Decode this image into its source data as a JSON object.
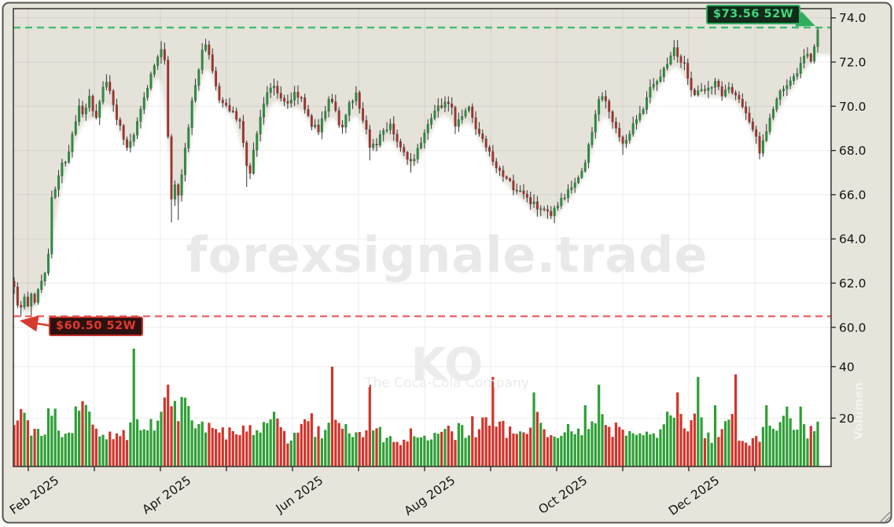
{
  "chart_data": {
    "type": "candlestick+volume",
    "symbol": "KO",
    "company": "The Coca-Cola Company",
    "watermarks": {
      "site": "forexsignale.trade",
      "symbol": "KO",
      "company": "The Coca-Cola Company",
      "side": "Volumen"
    },
    "price_axis": {
      "side": "right",
      "tick_labels": [
        "74.0",
        "72.0",
        "70.0",
        "68.0",
        "66.0",
        "64.0",
        "62.0",
        "60.0"
      ],
      "tick_values": [
        74,
        72,
        70,
        68,
        66,
        64,
        62,
        60
      ],
      "ylim": [
        53.7,
        74.4
      ]
    },
    "volume_axis": {
      "tick_labels": [
        "40",
        "20"
      ],
      "tick_values": [
        40,
        20
      ],
      "ylim": [
        0,
        182
      ]
    },
    "date_axis": {
      "month_labels": [
        "Feb 2025",
        "",
        "Apr 2025",
        "",
        "Jun 2025",
        "",
        "Aug 2025",
        "",
        "Oct 2025",
        "",
        "Dec 2025",
        ""
      ],
      "range": "Jan 2025 - Jan 2026"
    },
    "annotations": {
      "high_52w": {
        "label": "$73.56 52W",
        "value": 73.56,
        "line_color": "#3dbd71",
        "text_color": "#41d97c",
        "box_bg": "#132a1b",
        "border_color": "#2fae5e"
      },
      "low_52w": {
        "label": "$60.50 52W",
        "value": 60.5,
        "line_color": "#e85755",
        "text_color": "#e23a2e",
        "box_bg": "#2d1111",
        "border_color": "#c3342c"
      }
    },
    "colors": {
      "up": "#27923E",
      "down": "#A8322C",
      "vol_up": "#2E9F36",
      "vol_down": "#D2342A",
      "wick": "#333333",
      "plot_bg": "#e5e2da",
      "below_fill": "#ffffff",
      "frame_bg": "#e7e4dc",
      "frame_border": "#57534e",
      "grid": "rgba(0,0,0,0.07)",
      "spine": "#403d38",
      "tick_text": "#141414"
    },
    "days": 236,
    "price_path": [
      [
        0,
        61.8
      ],
      [
        1,
        61.1
      ],
      [
        2,
        60.8
      ],
      [
        3,
        61.3
      ],
      [
        4,
        60.9
      ],
      [
        5,
        61.4
      ],
      [
        6,
        61.2
      ],
      [
        7,
        61.7
      ],
      [
        8,
        62.1
      ],
      [
        9,
        62.6
      ],
      [
        10,
        63.4
      ],
      [
        11,
        65.8
      ],
      [
        12,
        66.3
      ],
      [
        14,
        67.3
      ],
      [
        16,
        67.9
      ],
      [
        18,
        69.3
      ],
      [
        19,
        70.0
      ],
      [
        20,
        69.7
      ],
      [
        22,
        70.3
      ],
      [
        24,
        69.4
      ],
      [
        26,
        70.8
      ],
      [
        27,
        71.2
      ],
      [
        29,
        70.1
      ],
      [
        31,
        69.0
      ],
      [
        33,
        68.2
      ],
      [
        35,
        68.8
      ],
      [
        37,
        69.9
      ],
      [
        39,
        70.9
      ],
      [
        41,
        71.9
      ],
      [
        43,
        72.5
      ],
      [
        44,
        72.2
      ],
      [
        45,
        68.5
      ],
      [
        46,
        65.7
      ],
      [
        47,
        66.3
      ],
      [
        48,
        65.9
      ],
      [
        49,
        66.9
      ],
      [
        50,
        68.0
      ],
      [
        51,
        69.0
      ],
      [
        52,
        70.2
      ],
      [
        53,
        71.0
      ],
      [
        54,
        71.8
      ],
      [
        55,
        72.4
      ],
      [
        56,
        72.9
      ],
      [
        57,
        72.4
      ],
      [
        58,
        71.5
      ],
      [
        60,
        70.3
      ],
      [
        62,
        70.0
      ],
      [
        64,
        69.8
      ],
      [
        66,
        69.3
      ],
      [
        67,
        68.3
      ],
      [
        68,
        67.3
      ],
      [
        69,
        67.1
      ],
      [
        70,
        68.0
      ],
      [
        72,
        69.6
      ],
      [
        74,
        70.6
      ],
      [
        76,
        70.9
      ],
      [
        78,
        70.4
      ],
      [
        80,
        70.1
      ],
      [
        82,
        70.6
      ],
      [
        84,
        70.4
      ],
      [
        85,
        69.8
      ],
      [
        87,
        69.2
      ],
      [
        89,
        68.9
      ],
      [
        90,
        69.4
      ],
      [
        92,
        70.4
      ],
      [
        93,
        70.2
      ],
      [
        95,
        69.3
      ],
      [
        96,
        68.9
      ],
      [
        98,
        70.2
      ],
      [
        100,
        70.5
      ],
      [
        101,
        70.0
      ],
      [
        103,
        68.9
      ],
      [
        104,
        68.0
      ],
      [
        106,
        68.3
      ],
      [
        108,
        68.9
      ],
      [
        110,
        69.2
      ],
      [
        112,
        68.5
      ],
      [
        114,
        67.8
      ],
      [
        116,
        67.4
      ],
      [
        118,
        68.1
      ],
      [
        120,
        68.9
      ],
      [
        122,
        69.6
      ],
      [
        124,
        70.0
      ],
      [
        126,
        70.2
      ],
      [
        128,
        69.8
      ],
      [
        129,
        69.2
      ],
      [
        131,
        69.6
      ],
      [
        133,
        69.9
      ],
      [
        135,
        69.0
      ],
      [
        137,
        68.4
      ],
      [
        139,
        67.8
      ],
      [
        141,
        67.1
      ],
      [
        143,
        66.8
      ],
      [
        145,
        66.5
      ],
      [
        147,
        66.2
      ],
      [
        149,
        66.0
      ],
      [
        151,
        65.7
      ],
      [
        153,
        65.4
      ],
      [
        155,
        65.2
      ],
      [
        157,
        65.0
      ],
      [
        159,
        65.5
      ],
      [
        161,
        65.9
      ],
      [
        163,
        66.3
      ],
      [
        165,
        66.8
      ],
      [
        167,
        67.4
      ],
      [
        168,
        68.2
      ],
      [
        170,
        69.6
      ],
      [
        171,
        70.4
      ],
      [
        173,
        70.2
      ],
      [
        175,
        69.4
      ],
      [
        177,
        68.6
      ],
      [
        178,
        68.2
      ],
      [
        180,
        68.8
      ],
      [
        182,
        69.4
      ],
      [
        184,
        70.0
      ],
      [
        186,
        70.9
      ],
      [
        188,
        71.2
      ],
      [
        190,
        71.7
      ],
      [
        192,
        72.3
      ],
      [
        193,
        72.8
      ],
      [
        194,
        72.4
      ],
      [
        196,
        71.8
      ],
      [
        197,
        71.2
      ],
      [
        199,
        70.6
      ],
      [
        201,
        70.7
      ],
      [
        203,
        70.9
      ],
      [
        205,
        71.0
      ],
      [
        207,
        70.6
      ],
      [
        209,
        70.8
      ],
      [
        211,
        70.6
      ],
      [
        213,
        70.0
      ],
      [
        215,
        69.3
      ],
      [
        217,
        68.5
      ],
      [
        218,
        68.0
      ],
      [
        220,
        68.9
      ],
      [
        222,
        69.9
      ],
      [
        224,
        70.6
      ],
      [
        226,
        71.0
      ],
      [
        228,
        71.2
      ],
      [
        230,
        71.9
      ],
      [
        232,
        72.4
      ],
      [
        233,
        72.0
      ],
      [
        234,
        72.8
      ],
      [
        235,
        73.3
      ]
    ],
    "pins_low": [
      [
        2,
        60.5
      ],
      [
        5,
        60.55
      ],
      [
        46,
        64.75
      ],
      [
        48,
        64.85
      ],
      [
        68,
        66.35
      ],
      [
        104,
        67.55
      ],
      [
        116,
        67.0
      ],
      [
        157,
        64.9
      ],
      [
        178,
        67.8
      ],
      [
        218,
        67.6
      ]
    ],
    "pins_high": [
      [
        27,
        71.45
      ],
      [
        43,
        72.95
      ],
      [
        56,
        73.05
      ],
      [
        193,
        73.0
      ],
      [
        235,
        73.56
      ]
    ],
    "volume_path": [
      [
        0,
        16
      ],
      [
        3,
        22
      ],
      [
        6,
        14
      ],
      [
        9,
        13
      ],
      [
        10,
        26
      ],
      [
        12,
        22
      ],
      [
        14,
        15
      ],
      [
        16,
        13
      ],
      [
        18,
        20
      ],
      [
        20,
        24
      ],
      [
        22,
        22
      ],
      [
        24,
        16
      ],
      [
        26,
        14
      ],
      [
        28,
        13
      ],
      [
        30,
        12
      ],
      [
        32,
        14
      ],
      [
        34,
        15
      ],
      [
        36,
        18
      ],
      [
        38,
        15
      ],
      [
        40,
        18
      ],
      [
        42,
        20
      ],
      [
        44,
        26
      ],
      [
        46,
        24
      ],
      [
        48,
        22
      ],
      [
        50,
        24
      ],
      [
        52,
        18
      ],
      [
        54,
        16
      ],
      [
        56,
        18
      ],
      [
        58,
        15
      ],
      [
        60,
        17
      ],
      [
        62,
        15
      ],
      [
        64,
        13
      ],
      [
        66,
        12
      ],
      [
        68,
        18
      ],
      [
        70,
        14
      ],
      [
        72,
        16
      ],
      [
        74,
        18
      ],
      [
        76,
        20
      ],
      [
        78,
        14
      ],
      [
        80,
        12
      ],
      [
        82,
        13
      ],
      [
        84,
        15
      ],
      [
        86,
        22
      ],
      [
        88,
        16
      ],
      [
        90,
        13
      ],
      [
        92,
        18
      ],
      [
        94,
        24
      ],
      [
        96,
        17
      ],
      [
        98,
        14
      ],
      [
        100,
        12
      ],
      [
        102,
        15
      ],
      [
        104,
        20
      ],
      [
        106,
        18
      ],
      [
        108,
        13
      ],
      [
        110,
        12
      ],
      [
        112,
        11
      ],
      [
        114,
        13
      ],
      [
        116,
        14
      ],
      [
        118,
        12
      ],
      [
        120,
        11
      ],
      [
        122,
        12
      ],
      [
        124,
        14
      ],
      [
        126,
        15
      ],
      [
        128,
        13
      ],
      [
        130,
        16
      ],
      [
        132,
        13
      ],
      [
        134,
        17
      ],
      [
        136,
        15
      ],
      [
        138,
        20
      ],
      [
        140,
        22
      ],
      [
        142,
        17
      ],
      [
        144,
        15
      ],
      [
        146,
        18
      ],
      [
        148,
        14
      ],
      [
        150,
        16
      ],
      [
        152,
        20
      ],
      [
        154,
        18
      ],
      [
        156,
        16
      ],
      [
        158,
        14
      ],
      [
        160,
        13
      ],
      [
        162,
        15
      ],
      [
        164,
        13
      ],
      [
        166,
        16
      ],
      [
        168,
        18
      ],
      [
        170,
        22
      ],
      [
        172,
        20
      ],
      [
        174,
        16
      ],
      [
        176,
        15
      ],
      [
        178,
        13
      ],
      [
        180,
        14
      ],
      [
        182,
        13
      ],
      [
        184,
        16
      ],
      [
        186,
        14
      ],
      [
        188,
        13
      ],
      [
        190,
        15
      ],
      [
        192,
        22
      ],
      [
        194,
        20
      ],
      [
        196,
        18
      ],
      [
        198,
        16
      ],
      [
        200,
        20
      ],
      [
        202,
        15
      ],
      [
        204,
        13
      ],
      [
        206,
        14
      ],
      [
        208,
        16
      ],
      [
        210,
        18
      ],
      [
        212,
        12
      ],
      [
        214,
        9
      ],
      [
        216,
        10
      ],
      [
        218,
        12
      ],
      [
        220,
        18
      ],
      [
        222,
        20
      ],
      [
        224,
        18
      ],
      [
        226,
        22
      ],
      [
        228,
        16
      ],
      [
        230,
        20
      ],
      [
        232,
        15
      ],
      [
        235,
        16
      ]
    ],
    "volume_spikes": [
      [
        35,
        47
      ],
      [
        44,
        28
      ],
      [
        45,
        33
      ],
      [
        93,
        40
      ],
      [
        104,
        33
      ],
      [
        140,
        36
      ],
      [
        152,
        30
      ],
      [
        167,
        25
      ],
      [
        171,
        33
      ],
      [
        194,
        30
      ],
      [
        200,
        36
      ],
      [
        205,
        25
      ],
      [
        211,
        37
      ],
      [
        220,
        25
      ]
    ]
  }
}
